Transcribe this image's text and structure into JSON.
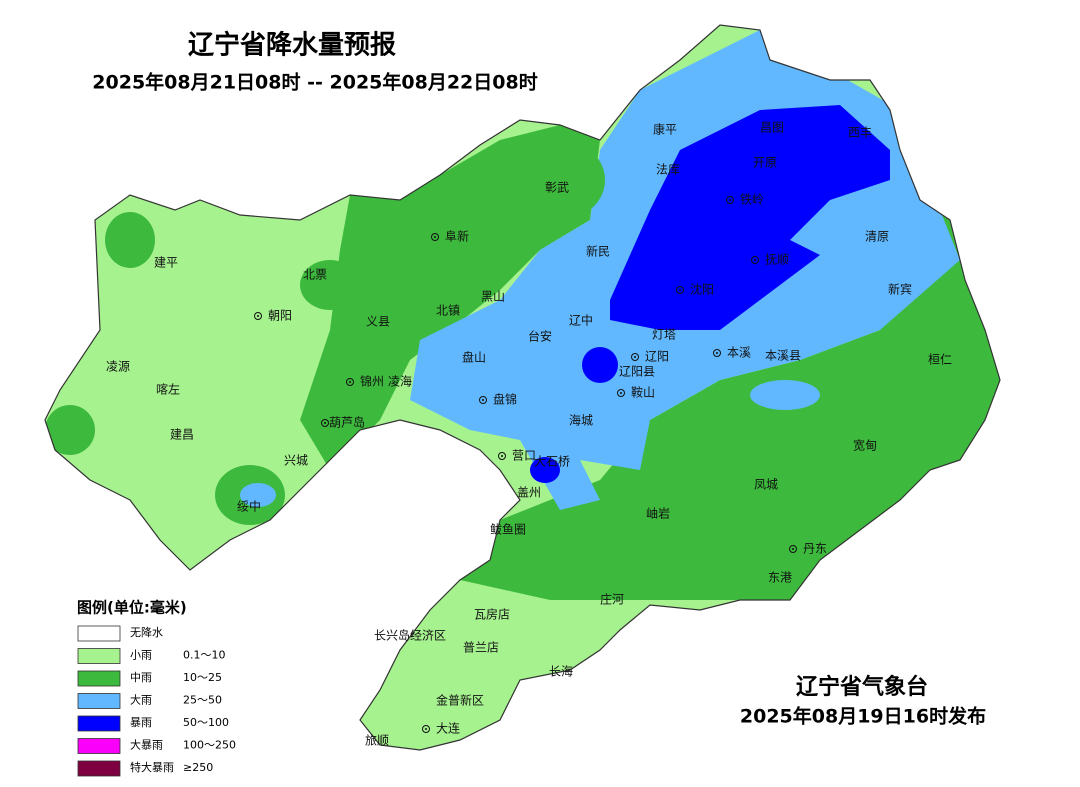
{
  "header": {
    "title": "辽宁省降水量预报",
    "subtitle": "2025年08月21日08时 -- 2025年08月22日08时"
  },
  "places": [
    "康平",
    "昌图",
    "西丰",
    "开原",
    "铁岭",
    "法库",
    "彰武",
    "阜新",
    "新民",
    "抚顺",
    "清原",
    "新宾",
    "沈阳",
    "辽中",
    "灯塔",
    "辽阳",
    "辽阳县",
    "本溪",
    "本溪县",
    "桓仁",
    "鞍山",
    "台安",
    "盘山",
    "盘锦",
    "黑山",
    "北镇",
    "义县",
    "北票",
    "建平",
    "朝阳",
    "凌源",
    "喀左",
    "锦州",
    "凌海",
    "葫芦岛",
    "建昌",
    "兴城",
    "绥中",
    "营口",
    "大石桥",
    "海城",
    "盖州",
    "岫岩",
    "凤城",
    "宽甸",
    "鲅鱼圈",
    "丹东",
    "东港",
    "庄河",
    "瓦房店",
    "长兴岛经济区",
    "普兰店",
    "长海",
    "金普新区",
    "大连",
    "旅顺"
  ],
  "legend": {
    "title": "图例(单位:毫米)",
    "items": [
      {
        "label": "无降水"
      },
      {
        "label": "小雨",
        "range": "0.1～10"
      },
      {
        "label": "中雨",
        "range": "10～25"
      },
      {
        "label": "大雨",
        "range": "25～50"
      },
      {
        "label": "暴雨",
        "range": "50～100"
      },
      {
        "label": "大暴雨",
        "range": "100～250"
      },
      {
        "label": "特大暴雨",
        "range": "≥250"
      }
    ]
  },
  "footer": {
    "issuer": "辽宁省气象台",
    "issued": "2025年08月19日16时发布"
  }
}
